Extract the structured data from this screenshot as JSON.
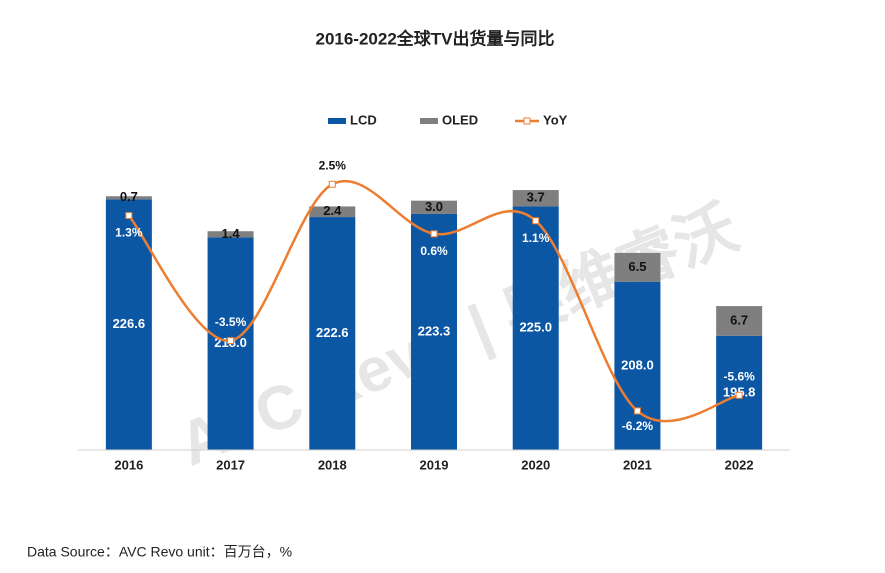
{
  "chart_data": {
    "type": "bar",
    "stacked": true,
    "title": "2016-2022全球TV出货量与同比",
    "categories": [
      "2016",
      "2017",
      "2018",
      "2019",
      "2020",
      "2021",
      "2022"
    ],
    "series": [
      {
        "name": "LCD",
        "color": "#0b57a4",
        "values": [
          226.6,
          218.0,
          222.6,
          223.3,
          225.0,
          208.0,
          195.8
        ],
        "value_labels": [
          "226.6",
          "218.0",
          "222.6",
          "223.3",
          "225.0",
          "208.0",
          "195.8"
        ]
      },
      {
        "name": "OLED",
        "color": "#7f7f7f",
        "values": [
          0.7,
          1.4,
          2.4,
          3.0,
          3.7,
          6.5,
          6.7
        ],
        "value_labels": [
          "0.7",
          "1.4",
          "2.4",
          "3.0",
          "3.7",
          "6.5",
          "6.7"
        ]
      },
      {
        "name": "YoY",
        "color": "#ed7d31",
        "type": "line",
        "axis": "y2",
        "values": [
          1.3,
          -3.5,
          2.5,
          0.6,
          1.1,
          -6.2,
          -5.6
        ],
        "value_labels": [
          "1.3%",
          "-3.5%",
          "2.5%",
          "0.6%",
          "1.1%",
          "-6.2%",
          "-5.6%"
        ]
      }
    ],
    "ylim": [
      170,
      240
    ],
    "y2lim": [
      -7.7,
      4.2
    ],
    "legend": "top",
    "grid": false,
    "watermark": "AVC Revo | 奥维睿沃",
    "source": "Data Source：AVC Revo  unit：百万台，%"
  }
}
